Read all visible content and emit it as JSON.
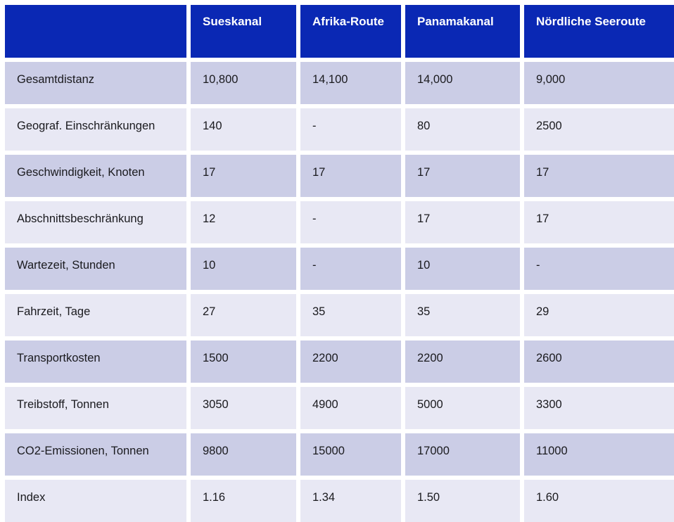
{
  "chart_data": {
    "type": "table",
    "title": "",
    "columns": [
      "",
      "Sueskanal",
      "Afrika-Route",
      "Panamakanal",
      "Nördliche Seeroute"
    ],
    "rows": [
      {
        "label": "Gesamtdistanz",
        "values": [
          "10,800",
          "14,100",
          "14,000",
          "9,000"
        ]
      },
      {
        "label": "Geograf. Einschränkungen",
        "values": [
          "140",
          "-",
          "80",
          "2500"
        ]
      },
      {
        "label": "Geschwindigkeit, Knoten",
        "values": [
          "17",
          "17",
          "17",
          "17"
        ]
      },
      {
        "label": "Abschnittsbeschränkung",
        "values": [
          "12",
          "-",
          "17",
          "17"
        ]
      },
      {
        "label": "Wartezeit, Stunden",
        "values": [
          "10",
          "-",
          "10",
          "-"
        ]
      },
      {
        "label": "Fahrzeit, Tage",
        "values": [
          "27",
          "35",
          "35",
          "29"
        ]
      },
      {
        "label": "Transportkosten",
        "values": [
          "1500",
          "2200",
          "2200",
          "2600"
        ]
      },
      {
        "label": "Treibstoff, Tonnen",
        "values": [
          "3050",
          "4900",
          "5000",
          "3300"
        ]
      },
      {
        "label": "CO2-Emissionen, Tonnen",
        "values": [
          "9800",
          "15000",
          "17000",
          "11000"
        ]
      },
      {
        "label": "Index",
        "values": [
          "1.16",
          "1.34",
          "1.50",
          "1.60"
        ]
      }
    ],
    "layout": {
      "header_position": "top",
      "banding": "alternating-rows",
      "grid": "white-dividers",
      "legend": "none"
    },
    "colors": {
      "header_bg": "#0a28b4",
      "header_text": "#ffffff",
      "row_band_dark": "#cbcde6",
      "row_band_light": "#e8e8f4",
      "body_text": "#1a1a1e",
      "divider": "#ffffff"
    }
  }
}
